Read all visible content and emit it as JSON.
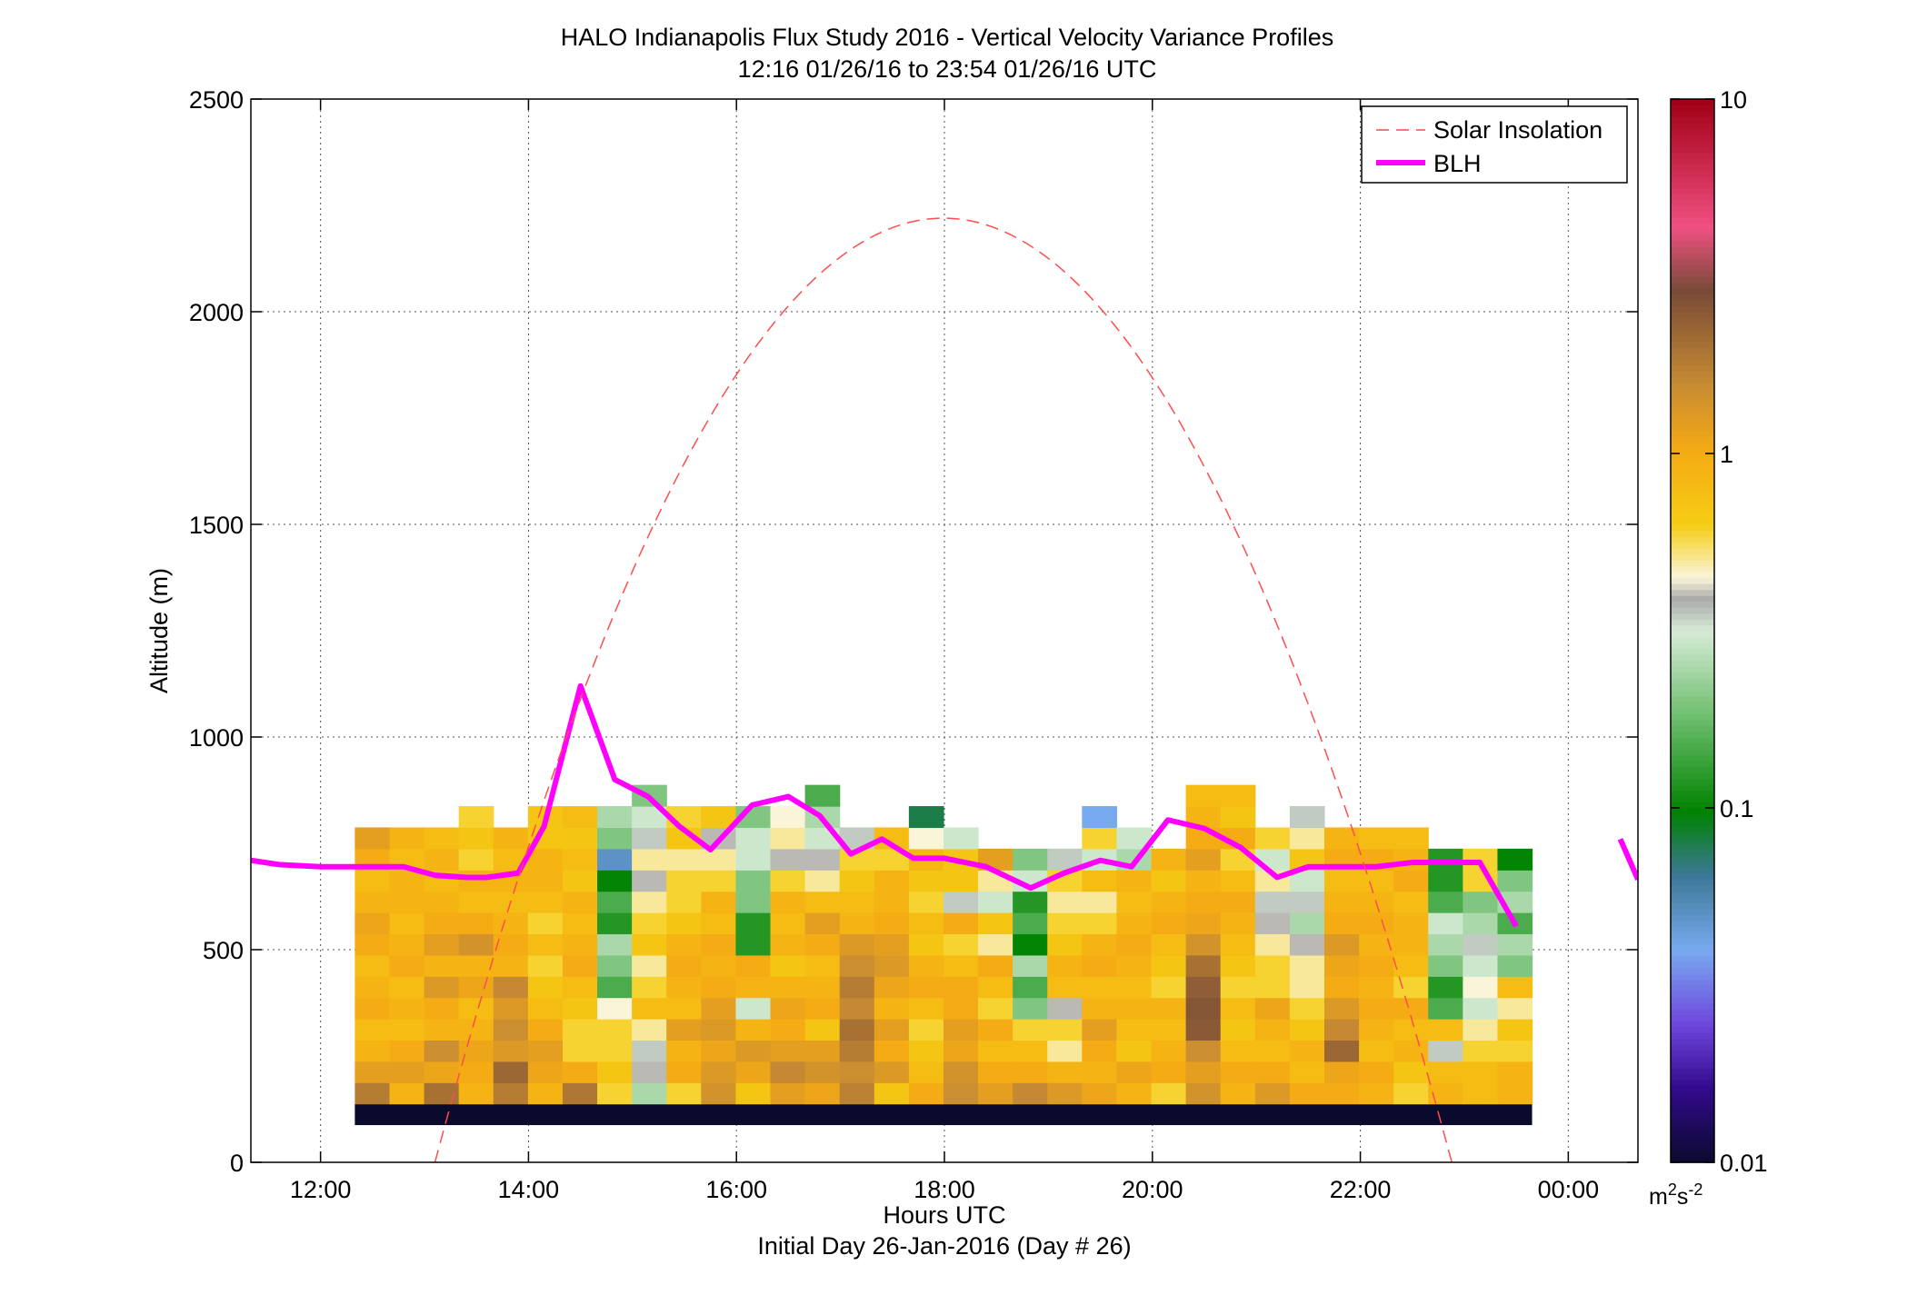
{
  "chart_data": {
    "type": "heatmap",
    "title": "HALO Indianapolis Flux Study 2016 - Vertical Velocity Variance Profiles",
    "subtitle": "12:16 01/26/16 to 23:54 01/26/16  UTC",
    "xlabel": "Hours UTC",
    "xlabel2": "Initial Day 26-Jan-2016 (Day # 26)",
    "ylabel": "Altitude (m)",
    "x_units": "hours UTC",
    "xlim": [
      11.33,
      24.67
    ],
    "ylim": [
      0,
      2500
    ],
    "x_ticks": [
      12,
      14,
      16,
      18,
      20,
      22,
      24
    ],
    "x_tick_labels": [
      "12:00",
      "14:00",
      "16:00",
      "18:00",
      "20:00",
      "22:00",
      "00:00"
    ],
    "y_ticks": [
      0,
      500,
      1000,
      1500,
      2000,
      2500
    ],
    "y_tick_labels": [
      "0",
      "500",
      "1000",
      "1500",
      "2000",
      "2500"
    ],
    "grid": true,
    "legend_position": "top-right",
    "legend": [
      {
        "label": "Solar Insolation",
        "color": "#ff4d4d",
        "style": "dashed"
      },
      {
        "label": "BLH",
        "color": "#ff00ff",
        "style": "solid"
      }
    ],
    "colorbar": {
      "scale": "log",
      "min": 0.01,
      "max": 10,
      "ticks": [
        0.01,
        0.1,
        1,
        10
      ],
      "tick_labels": [
        "0.01",
        "0.1",
        "1",
        "10"
      ],
      "units_base": "m",
      "units_exp1": "2",
      "units_mid": "s",
      "units_exp2": "-2",
      "units": "m2s-2"
    },
    "heatmap": {
      "x_start": 12.33,
      "dx": 0.333,
      "y_start": 87.5,
      "dy": 50,
      "base_row_value": 0.01,
      "base_row_altitude": [
        87.5,
        137.5
      ],
      "columns_bottom_up_m2s2": [
        [
          1.8,
          1.2,
          0.9,
          0.8,
          1.0,
          0.9,
          0.8,
          1.0,
          1.1,
          0.9,
          0.8,
          1.0,
          1.2
        ],
        [
          0.9,
          1.2,
          1.0,
          0.8,
          0.9,
          0.8,
          1.0,
          0.9,
          0.8,
          0.9,
          0.9,
          0.8,
          0.9
        ],
        [
          2.0,
          1.1,
          1.5,
          0.9,
          1.0,
          1.3,
          0.9,
          1.2,
          1.0,
          0.9,
          0.8,
          0.9,
          0.8
        ],
        [
          0.9,
          1.0,
          1.1,
          0.9,
          0.8,
          1.1,
          0.9,
          1.4,
          1.0,
          0.8,
          0.9,
          0.6,
          0.7,
          0.6
        ],
        [
          1.8,
          2.2,
          1.3,
          1.5,
          1.3,
          1.6,
          0.9,
          1.0,
          0.9,
          0.8,
          0.9,
          0.8,
          0.9
        ],
        [
          0.9,
          1.1,
          1.2,
          1.0,
          0.8,
          0.7,
          0.6,
          0.8,
          0.6,
          0.8,
          0.9,
          0.9,
          0.7,
          0.7
        ],
        [
          1.9,
          1.0,
          0.6,
          0.6,
          0.7,
          0.8,
          1.0,
          0.9,
          0.8,
          0.9,
          0.7,
          0.8,
          0.7,
          0.8
        ],
        [
          0.6,
          0.7,
          0.6,
          0.6,
          0.45,
          0.15,
          0.2,
          0.25,
          0.12,
          0.15,
          0.1,
          0.05,
          0.2,
          0.25
        ],
        [
          0.25,
          0.4,
          0.35,
          0.5,
          0.8,
          0.6,
          0.5,
          0.7,
          0.6,
          0.5,
          0.4,
          0.5,
          0.35,
          0.3,
          0.2
        ],
        [
          0.6,
          1.0,
          0.9,
          1.2,
          0.8,
          0.9,
          1.0,
          0.9,
          0.7,
          0.6,
          0.6,
          0.5,
          0.7,
          0.6
        ],
        [
          1.4,
          1.3,
          1.1,
          1.3,
          1.2,
          1.0,
          0.9,
          1.0,
          0.8,
          0.9,
          0.6,
          0.5,
          0.4,
          0.7
        ],
        [
          0.7,
          1.1,
          1.3,
          0.9,
          0.3,
          0.9,
          1.0,
          0.12,
          0.12,
          0.2,
          0.2,
          0.3,
          0.3,
          0.2
        ],
        [
          1.2,
          1.6,
          1.2,
          1.0,
          1.1,
          0.9,
          0.7,
          0.9,
          0.8,
          0.9,
          0.6,
          0.4,
          0.5,
          0.45
        ],
        [
          1.1,
          1.4,
          1.2,
          0.7,
          1.0,
          0.9,
          0.8,
          1.0,
          1.2,
          0.8,
          0.5,
          0.4,
          0.3,
          0.25,
          0.15
        ],
        [
          1.7,
          1.5,
          1.8,
          2.0,
          1.6,
          1.8,
          1.5,
          1.3,
          0.9,
          0.8,
          0.7,
          0.6,
          0.35
        ],
        [
          0.7,
          1.3,
          1.0,
          1.2,
          0.9,
          1.1,
          1.3,
          1.2,
          1.0,
          0.9,
          0.9,
          0.6,
          0.8
        ],
        [
          1.0,
          0.8,
          0.7,
          0.6,
          0.8,
          1.0,
          0.9,
          0.7,
          0.8,
          0.6,
          0.7,
          0.85,
          0.45,
          0.08
        ],
        [
          1.5,
          1.4,
          1.1,
          1.2,
          1.0,
          1.0,
          0.8,
          0.6,
          1.0,
          0.35,
          0.7,
          0.7,
          0.3
        ],
        [
          1.2,
          1.0,
          0.8,
          1.0,
          0.6,
          0.8,
          1.0,
          0.5,
          0.7,
          0.3,
          0.5,
          1.2
        ],
        [
          1.6,
          1.0,
          0.8,
          0.6,
          0.2,
          0.15,
          0.25,
          0.1,
          0.15,
          0.12,
          0.3,
          0.2
        ],
        [
          1.3,
          0.9,
          0.5,
          0.6,
          0.4,
          0.8,
          0.9,
          0.7,
          0.6,
          0.5,
          0.6,
          0.35
        ],
        [
          1.1,
          0.9,
          1.0,
          1.2,
          0.9,
          0.8,
          1.0,
          0.9,
          0.6,
          0.5,
          0.8,
          0.3,
          0.6,
          0.04
        ],
        [
          0.9,
          1.1,
          0.7,
          0.8,
          0.9,
          0.8,
          0.9,
          1.0,
          0.9,
          0.8,
          0.9,
          0.25,
          0.3
        ],
        [
          0.6,
          1.0,
          0.9,
          0.8,
          0.9,
          0.6,
          0.7,
          0.8,
          1.0,
          0.9,
          0.7,
          0.9
        ],
        [
          1.4,
          1.2,
          1.5,
          2.5,
          2.6,
          2.4,
          2.0,
          1.4,
          1.1,
          1.0,
          0.9,
          1.2,
          1.0,
          0.9,
          0.8
        ],
        [
          0.9,
          1.0,
          0.8,
          0.7,
          0.8,
          0.6,
          0.7,
          0.8,
          0.9,
          1.0,
          0.8,
          0.6,
          1.0,
          0.7,
          0.8
        ],
        [
          1.3,
          1.0,
          0.8,
          0.9,
          1.1,
          0.6,
          0.6,
          0.5,
          0.4,
          0.35,
          0.5,
          0.3,
          0.6
        ],
        [
          1.0,
          0.8,
          0.9,
          0.7,
          0.6,
          0.5,
          0.5,
          0.4,
          0.25,
          0.35,
          0.3,
          0.7,
          0.5,
          0.35
        ],
        [
          1.0,
          1.1,
          2.2,
          1.6,
          1.3,
          1.0,
          1.1,
          1.3,
          1.0,
          0.9,
          0.8,
          1.0,
          0.9
        ],
        [
          0.9,
          1.0,
          0.8,
          0.9,
          1.0,
          0.9,
          1.0,
          0.9,
          1.0,
          0.9,
          0.8,
          1.0,
          0.8
        ],
        [
          0.6,
          0.7,
          0.9,
          0.8,
          1.0,
          0.6,
          0.8,
          0.9,
          0.9,
          0.8,
          1.0,
          0.9,
          0.8
        ],
        [
          0.9,
          0.8,
          0.35,
          0.8,
          0.15,
          0.12,
          0.2,
          0.25,
          0.3,
          0.15,
          0.12,
          0.12
        ],
        [
          0.8,
          0.8,
          0.6,
          0.5,
          0.3,
          0.45,
          0.3,
          0.35,
          0.25,
          0.2,
          0.6,
          0.6
        ],
        [
          0.9,
          0.9,
          0.6,
          0.7,
          0.5,
          0.8,
          0.2,
          0.25,
          0.15,
          0.25,
          0.2,
          0.1
        ]
      ]
    },
    "series": [
      {
        "name": "BLH",
        "x": [
          11.33,
          11.6,
          12.0,
          12.4,
          12.8,
          13.1,
          13.4,
          13.6,
          13.9,
          14.15,
          14.5,
          14.83,
          15.15,
          15.45,
          15.75,
          16.15,
          16.5,
          16.8,
          17.1,
          17.4,
          17.7,
          18.0,
          18.4,
          18.83,
          19.15,
          19.5,
          19.8,
          20.15,
          20.5,
          20.85,
          21.2,
          21.5,
          21.8,
          22.15,
          22.5,
          22.8,
          23.15,
          23.5
        ],
        "y": [
          710,
          700,
          695,
          695,
          695,
          675,
          670,
          670,
          680,
          790,
          1120,
          900,
          860,
          790,
          735,
          840,
          860,
          815,
          725,
          760,
          715,
          715,
          695,
          645,
          680,
          710,
          695,
          805,
          785,
          740,
          670,
          695,
          695,
          695,
          705,
          705,
          705,
          555
        ],
        "x2": [
          24.5,
          24.67
        ],
        "y2": [
          760,
          665
        ]
      },
      {
        "name": "Solar Insolation",
        "function": "parabola",
        "x_zero_left": 13.1,
        "x_zero_right": 22.88,
        "x_peak": 17.99,
        "y_peak": 2220
      }
    ]
  }
}
